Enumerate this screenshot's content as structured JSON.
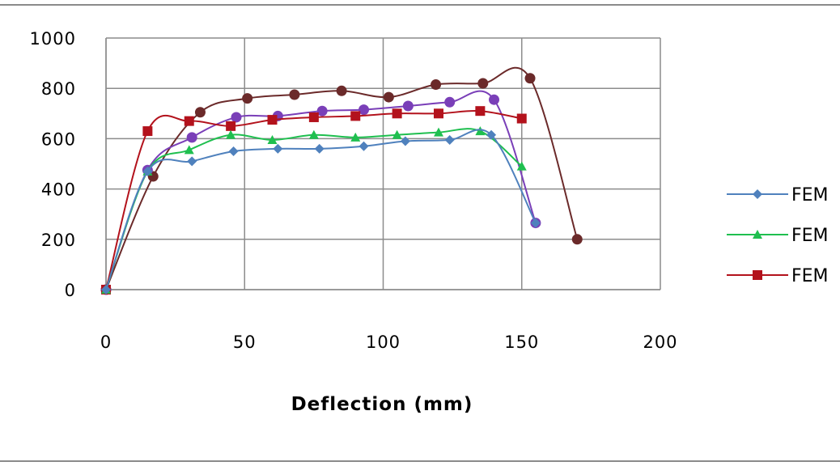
{
  "chart_data": {
    "type": "line",
    "title": "",
    "xlabel": "Deflection (mm)",
    "ylabel": "",
    "xlim": [
      0,
      200
    ],
    "ylim": [
      0,
      1000
    ],
    "x_ticks": [
      "0",
      "50",
      "100",
      "150",
      "200"
    ],
    "y_ticks": [
      "0",
      "200",
      "400",
      "600",
      "800",
      "1000"
    ],
    "grid": true,
    "legend_position": "right",
    "series": [
      {
        "name": "FEM",
        "color": "#4f81bd",
        "marker": "diamond",
        "legend": true,
        "points": [
          [
            0,
            0
          ],
          [
            15,
            470
          ],
          [
            31,
            510
          ],
          [
            46,
            550
          ],
          [
            62,
            560
          ],
          [
            77,
            560
          ],
          [
            93,
            570
          ],
          [
            108,
            590
          ],
          [
            124,
            595
          ],
          [
            139,
            615
          ],
          [
            155,
            265
          ]
        ]
      },
      {
        "name": "FEM",
        "color": "#1fbf4f",
        "marker": "triangle",
        "legend": true,
        "points": [
          [
            0,
            0
          ],
          [
            15,
            470
          ],
          [
            30,
            555
          ],
          [
            45,
            615
          ],
          [
            60,
            595
          ],
          [
            75,
            615
          ],
          [
            90,
            605
          ],
          [
            105,
            615
          ],
          [
            120,
            625
          ],
          [
            135,
            630
          ],
          [
            150,
            490
          ]
        ]
      },
      {
        "name": "FEM",
        "color": "#b3121c",
        "marker": "square",
        "legend": true,
        "points": [
          [
            0,
            0
          ],
          [
            15,
            630
          ],
          [
            30,
            670
          ],
          [
            45,
            650
          ],
          [
            60,
            675
          ],
          [
            75,
            685
          ],
          [
            90,
            690
          ],
          [
            105,
            700
          ],
          [
            120,
            700
          ],
          [
            135,
            710
          ],
          [
            150,
            680
          ]
        ]
      },
      {
        "name": "",
        "color": "#7a3fb8",
        "marker": "circle",
        "legend": false,
        "points": [
          [
            0,
            0
          ],
          [
            15,
            475
          ],
          [
            31,
            605
          ],
          [
            47,
            685
          ],
          [
            62,
            690
          ],
          [
            78,
            710
          ],
          [
            93,
            715
          ],
          [
            109,
            730
          ],
          [
            124,
            745
          ],
          [
            140,
            755
          ],
          [
            155,
            265
          ]
        ]
      },
      {
        "name": "",
        "color": "#6b2a2a",
        "marker": "circle",
        "legend": false,
        "points": [
          [
            0,
            0
          ],
          [
            17,
            450
          ],
          [
            34,
            705
          ],
          [
            51,
            760
          ],
          [
            68,
            775
          ],
          [
            85,
            790
          ],
          [
            102,
            765
          ],
          [
            119,
            815
          ],
          [
            136,
            820
          ],
          [
            153,
            840
          ],
          [
            170,
            200
          ]
        ]
      }
    ]
  }
}
